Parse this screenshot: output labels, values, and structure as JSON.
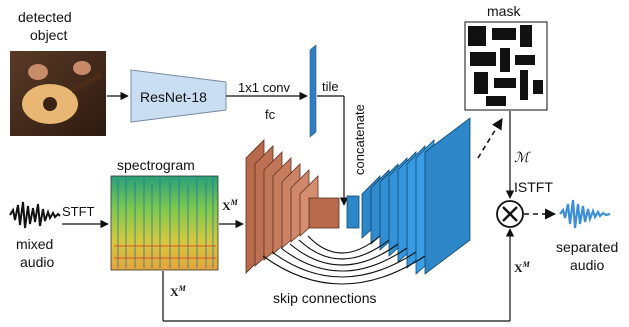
{
  "input": {
    "detected_object_line1": "detected",
    "detected_object_line2": "object",
    "mixed_audio_line1": "mixed",
    "mixed_audio_line2": "audio"
  },
  "visual": {
    "encoder": "ResNet-18",
    "conv": "1x1 conv",
    "fc": "fc",
    "tile": "tile",
    "concatenate": "concatenate"
  },
  "audio": {
    "stft": "STFT",
    "spectrogram": "spectrogram",
    "xm_symbol": "X",
    "xm_sup": "M",
    "skip_connections": "skip connections"
  },
  "output": {
    "mask": "mask",
    "mask_symbol": "ℳ",
    "istft": "ISTFT",
    "multiply_symbol": "⊗",
    "separated_line1": "separated",
    "separated_line2": "audio"
  },
  "colors": {
    "resnet_fill": "#c9def0",
    "vector_blue": "#2f7fc1",
    "encoder_brown": "#b86a4c",
    "decoder_blue": "#2d86c8",
    "wave_blue": "#3a8fd8"
  }
}
